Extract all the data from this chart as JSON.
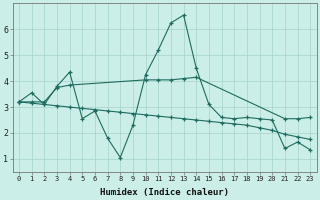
{
  "xlabel": "Humidex (Indice chaleur)",
  "background_color": "#cceee8",
  "line_color": "#1e6b60",
  "grid_color": "#aad8d0",
  "xlim": [
    -0.5,
    23.5
  ],
  "ylim": [
    0.5,
    7.0
  ],
  "yticks": [
    1,
    2,
    3,
    4,
    5,
    6
  ],
  "xticks": [
    0,
    1,
    2,
    3,
    4,
    5,
    6,
    7,
    8,
    9,
    10,
    11,
    12,
    13,
    14,
    15,
    16,
    17,
    18,
    19,
    20,
    21,
    22,
    23
  ],
  "line1_x": [
    0,
    1,
    2,
    3,
    4,
    5,
    6,
    7,
    8,
    9,
    10,
    11,
    12,
    13,
    14,
    15,
    16,
    17,
    18,
    19,
    20,
    21,
    22,
    23
  ],
  "line1_y": [
    3.2,
    3.55,
    3.1,
    3.8,
    4.35,
    2.55,
    2.85,
    1.8,
    1.05,
    2.3,
    4.25,
    5.2,
    6.25,
    6.55,
    4.5,
    3.1,
    2.6,
    2.55,
    2.6,
    2.55,
    2.5,
    1.4,
    1.65,
    1.35
  ],
  "line2_x": [
    0,
    1,
    2,
    3,
    4,
    5,
    6,
    7,
    8,
    9,
    10,
    11,
    12,
    13,
    14,
    15,
    16,
    17,
    18,
    19,
    20,
    21,
    22,
    23
  ],
  "line2_y": [
    3.2,
    3.15,
    3.1,
    3.05,
    3.0,
    2.95,
    2.9,
    2.85,
    2.8,
    2.75,
    2.7,
    2.65,
    2.6,
    2.55,
    2.5,
    2.45,
    2.4,
    2.35,
    2.3,
    2.2,
    2.1,
    1.95,
    1.85,
    1.75
  ],
  "line3_x": [
    0,
    1,
    2,
    3,
    4,
    10,
    11,
    12,
    13,
    14,
    21,
    22,
    23
  ],
  "line3_y": [
    3.2,
    3.2,
    3.2,
    3.75,
    3.85,
    4.05,
    4.05,
    4.05,
    4.1,
    4.15,
    2.55,
    2.55,
    2.6
  ]
}
